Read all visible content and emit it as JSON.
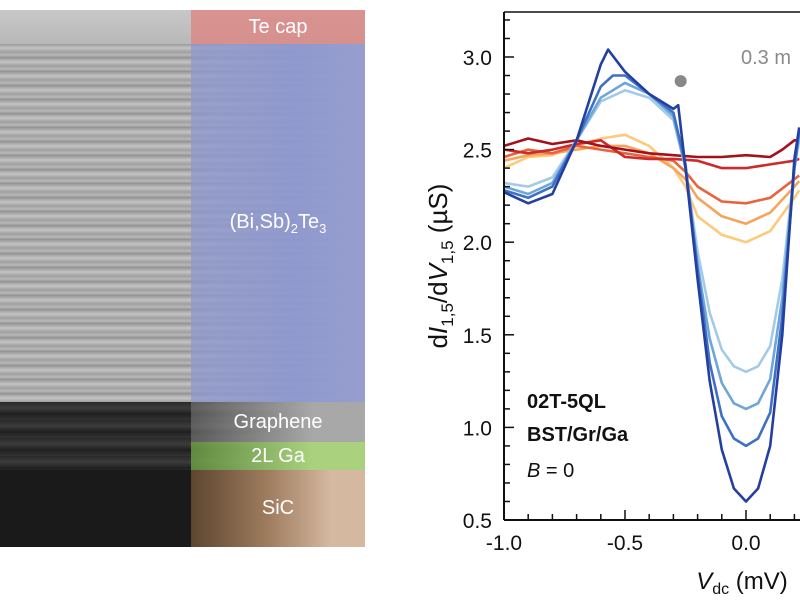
{
  "tem_panel": {
    "layers": [
      {
        "label": "Te cap",
        "color": "#d98c8a"
      },
      {
        "label": "(Bi,Sb)",
        "sub": "2",
        "label2": "Te",
        "sub2": "3",
        "color": "#8e98cf"
      },
      {
        "label": "Graphene",
        "color": "#a8a8a8"
      },
      {
        "label": "2L Ga",
        "color": "#a9d17e"
      },
      {
        "label": "SiC",
        "color": "#c9a98a"
      }
    ]
  },
  "chart_data": {
    "type": "line",
    "xlabel": {
      "main": "V",
      "sub": "dc",
      "unit": " (mV)"
    },
    "ylabel": {
      "d1": "d",
      "I": "I",
      "isub": "1,5",
      "slash": "/d",
      "V": "V",
      "vsub": "1,5",
      "unit": " (µS)"
    },
    "xlim": [
      -1.0,
      0.22
    ],
    "ylim": [
      0.5,
      3.25
    ],
    "xticks": [
      "-1.0",
      "-0.5",
      "0.0"
    ],
    "xtick_values": [
      -1.0,
      -0.5,
      0.0
    ],
    "yticks": [
      "0.5",
      "1.0",
      "1.5",
      "2.0",
      "2.5",
      "3.0"
    ],
    "ytick_values": [
      0.5,
      1.0,
      1.5,
      2.0,
      2.5,
      3.0
    ],
    "grid": false,
    "annotations": {
      "sample": "02T-5QL",
      "stack": "BST/Gr/Ga",
      "field_var": "B",
      "field_val": " = 0",
      "temp_label": "0.3 m",
      "marker": {
        "x": -0.27,
        "y": 2.87,
        "color": "#888888"
      }
    },
    "series": [
      {
        "color": "#fdc97a",
        "x": [
          -1,
          -0.9,
          -0.8,
          -0.7,
          -0.6,
          -0.5,
          -0.4,
          -0.3,
          -0.25,
          -0.2,
          -0.1,
          0,
          0.1,
          0.2,
          0.22
        ],
        "y": [
          2.4,
          2.46,
          2.47,
          2.52,
          2.56,
          2.58,
          2.52,
          2.4,
          2.3,
          2.14,
          2.04,
          2.0,
          2.06,
          2.24,
          2.28
        ]
      },
      {
        "color": "#f6a45c",
        "x": [
          -1,
          -0.9,
          -0.8,
          -0.7,
          -0.6,
          -0.5,
          -0.4,
          -0.3,
          -0.25,
          -0.2,
          -0.1,
          0,
          0.1,
          0.2,
          0.22
        ],
        "y": [
          2.44,
          2.47,
          2.48,
          2.5,
          2.52,
          2.52,
          2.48,
          2.4,
          2.34,
          2.24,
          2.14,
          2.1,
          2.16,
          2.3,
          2.33
        ]
      },
      {
        "color": "#e8643e",
        "x": [
          -1,
          -0.9,
          -0.8,
          -0.7,
          -0.6,
          -0.5,
          -0.4,
          -0.3,
          -0.25,
          -0.2,
          -0.1,
          0,
          0.1,
          0.2,
          0.22
        ],
        "y": [
          2.46,
          2.5,
          2.48,
          2.52,
          2.5,
          2.48,
          2.46,
          2.44,
          2.38,
          2.3,
          2.22,
          2.21,
          2.24,
          2.34,
          2.36
        ]
      },
      {
        "color": "#cc2b2b",
        "x": [
          -1,
          -0.9,
          -0.8,
          -0.7,
          -0.6,
          -0.5,
          -0.4,
          -0.3,
          -0.2,
          -0.1,
          0,
          0.1,
          0.2,
          0.22
        ],
        "y": [
          2.5,
          2.48,
          2.5,
          2.53,
          2.55,
          2.46,
          2.45,
          2.45,
          2.44,
          2.4,
          2.4,
          2.42,
          2.44,
          2.45
        ]
      },
      {
        "color": "#a3121b",
        "x": [
          -1,
          -0.9,
          -0.8,
          -0.7,
          -0.6,
          -0.5,
          -0.4,
          -0.3,
          -0.2,
          -0.1,
          0,
          0.1,
          0.15,
          0.2,
          0.22
        ],
        "y": [
          2.52,
          2.56,
          2.53,
          2.55,
          2.52,
          2.5,
          2.48,
          2.47,
          2.46,
          2.46,
          2.47,
          2.46,
          2.5,
          2.55,
          2.55
        ]
      },
      {
        "color": "#a3cbe8",
        "x": [
          -1,
          -0.9,
          -0.8,
          -0.7,
          -0.6,
          -0.5,
          -0.4,
          -0.3,
          -0.25,
          -0.2,
          -0.15,
          -0.1,
          -0.05,
          0,
          0.05,
          0.1,
          0.15,
          0.2,
          0.22
        ],
        "y": [
          2.32,
          2.3,
          2.35,
          2.55,
          2.76,
          2.82,
          2.78,
          2.66,
          2.4,
          1.95,
          1.62,
          1.42,
          1.33,
          1.3,
          1.33,
          1.44,
          1.8,
          2.4,
          2.55
        ]
      },
      {
        "color": "#6ea6da",
        "x": [
          -1,
          -0.9,
          -0.8,
          -0.7,
          -0.6,
          -0.5,
          -0.4,
          -0.3,
          -0.25,
          -0.2,
          -0.15,
          -0.1,
          -0.05,
          0,
          0.05,
          0.1,
          0.15,
          0.2,
          0.22
        ],
        "y": [
          2.3,
          2.26,
          2.32,
          2.55,
          2.78,
          2.86,
          2.8,
          2.68,
          2.4,
          1.88,
          1.48,
          1.24,
          1.13,
          1.1,
          1.13,
          1.26,
          1.7,
          2.4,
          2.58
        ]
      },
      {
        "color": "#3e70c4",
        "x": [
          -1,
          -0.9,
          -0.8,
          -0.7,
          -0.6,
          -0.55,
          -0.5,
          -0.4,
          -0.3,
          -0.25,
          -0.2,
          -0.15,
          -0.1,
          -0.05,
          0,
          0.05,
          0.1,
          0.15,
          0.2,
          0.22
        ],
        "y": [
          2.28,
          2.24,
          2.3,
          2.55,
          2.84,
          2.9,
          2.9,
          2.8,
          2.7,
          2.42,
          1.85,
          1.35,
          1.06,
          0.94,
          0.9,
          0.94,
          1.08,
          1.6,
          2.4,
          2.6
        ]
      },
      {
        "color": "#2340a0",
        "x": [
          -1,
          -0.9,
          -0.8,
          -0.7,
          -0.6,
          -0.57,
          -0.5,
          -0.4,
          -0.3,
          -0.28,
          -0.25,
          -0.2,
          -0.15,
          -0.1,
          -0.05,
          0,
          0.05,
          0.1,
          0.15,
          0.2,
          0.22
        ],
        "y": [
          2.27,
          2.21,
          2.26,
          2.55,
          2.96,
          3.04,
          2.92,
          2.8,
          2.72,
          2.74,
          2.4,
          1.8,
          1.25,
          0.88,
          0.67,
          0.6,
          0.67,
          0.9,
          1.5,
          2.45,
          2.62
        ]
      }
    ]
  }
}
